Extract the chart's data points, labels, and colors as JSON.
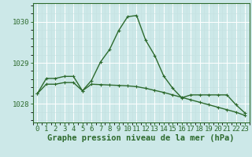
{
  "line1_x": [
    0,
    1,
    2,
    3,
    4,
    5,
    6,
    7,
    8,
    9,
    10,
    11,
    12,
    13,
    14,
    15,
    16,
    17,
    18,
    19,
    20,
    21,
    22,
    23
  ],
  "line1_y": [
    1028.25,
    1028.62,
    1028.62,
    1028.67,
    1028.67,
    1028.32,
    1028.57,
    1029.02,
    1029.32,
    1029.78,
    1030.12,
    1030.15,
    1029.55,
    1029.18,
    1028.68,
    1028.38,
    1028.15,
    1028.22,
    1028.22,
    1028.22,
    1028.22,
    1028.22,
    1027.98,
    1027.78
  ],
  "line2_x": [
    0,
    1,
    2,
    3,
    4,
    5,
    6,
    7,
    8,
    9,
    10,
    11,
    12,
    13,
    14,
    15,
    16,
    17,
    18,
    19,
    20,
    21,
    22,
    23
  ],
  "line2_y": [
    1028.25,
    1028.48,
    1028.48,
    1028.52,
    1028.52,
    1028.32,
    1028.48,
    1028.47,
    1028.46,
    1028.45,
    1028.44,
    1028.42,
    1028.38,
    1028.33,
    1028.28,
    1028.22,
    1028.16,
    1028.1,
    1028.04,
    1027.98,
    1027.92,
    1027.86,
    1027.8,
    1027.72
  ],
  "line_color": "#2d6a2d",
  "bg_color": "#cce8e8",
  "grid_major_color": "#b8d8d8",
  "grid_minor_color": "#c4e0e0",
  "xlabel": "Graphe pression niveau de la mer (hPa)",
  "ylim": [
    1027.55,
    1030.45
  ],
  "xlim": [
    -0.5,
    23.5
  ],
  "yticks": [
    1028,
    1029,
    1030
  ],
  "xticks": [
    0,
    1,
    2,
    3,
    4,
    5,
    6,
    7,
    8,
    9,
    10,
    11,
    12,
    13,
    14,
    15,
    16,
    17,
    18,
    19,
    20,
    21,
    22,
    23
  ],
  "marker_size": 2.5,
  "line_width": 1.0,
  "xlabel_fontsize": 7.5,
  "tick_fontsize": 6.5
}
